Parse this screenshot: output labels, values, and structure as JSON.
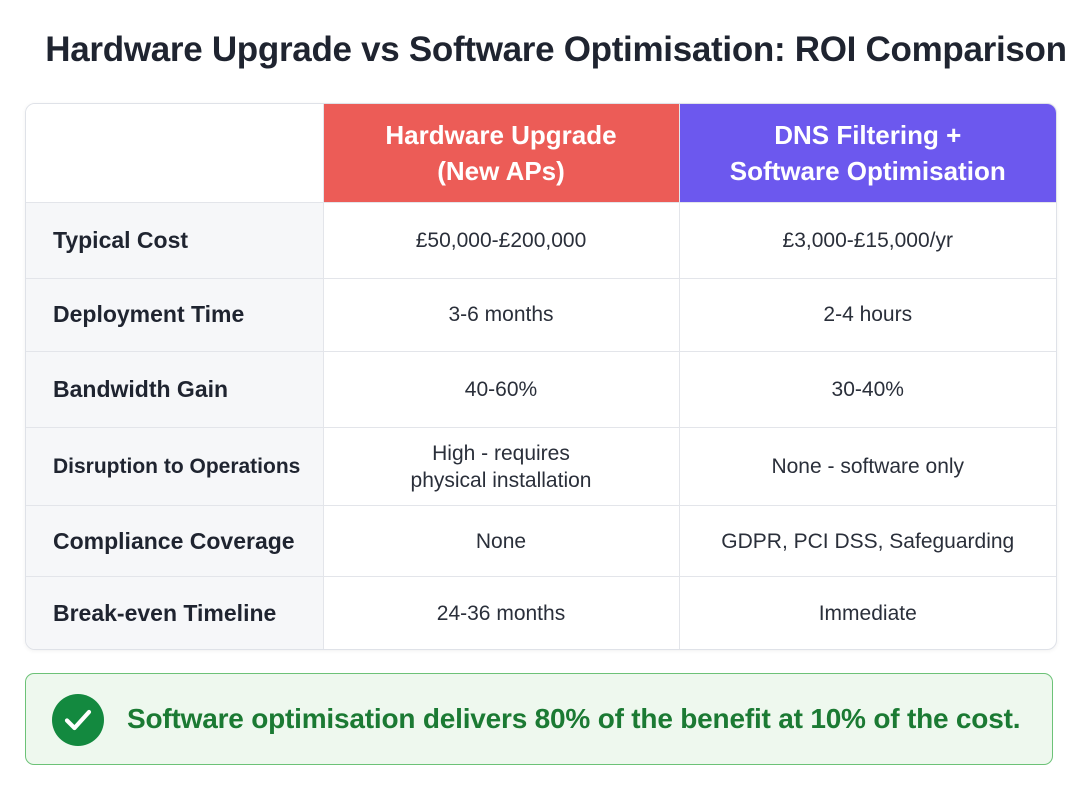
{
  "title": "Hardware Upgrade vs Software Optimisation: ROI Comparison",
  "colors": {
    "hardware_header": "#ec5c57",
    "software_header": "#6c58ee",
    "callout_text": "#1b7a33",
    "callout_bg": "#eef8ee",
    "check_circle": "#13893f"
  },
  "table": {
    "columns": {
      "hardware": {
        "line1": "Hardware Upgrade",
        "line2": "(New APs)"
      },
      "software": {
        "line1": "DNS Filtering +",
        "line2": "Software Optimisation"
      }
    },
    "rows": [
      {
        "label": "Typical Cost",
        "hardware": [
          "£50,000-£200,000"
        ],
        "software": [
          "£3,000-£15,000/yr"
        ]
      },
      {
        "label": "Deployment Time",
        "hardware": [
          "3-6 months"
        ],
        "software": [
          "2-4 hours"
        ]
      },
      {
        "label": "Bandwidth Gain",
        "hardware": [
          "40-60%"
        ],
        "software": [
          "30-40%"
        ]
      },
      {
        "label": "Disruption to Operations",
        "hardware": [
          "High - requires",
          "physical installation"
        ],
        "software": [
          "None - software only"
        ]
      },
      {
        "label": "Compliance Coverage",
        "hardware": [
          "None"
        ],
        "software": [
          "GDPR, PCI DSS, Safeguarding"
        ]
      },
      {
        "label": "Break-even Timeline",
        "hardware": [
          "24-36 months"
        ],
        "software": [
          "Immediate"
        ]
      }
    ]
  },
  "callout": {
    "icon": "check-circle-icon",
    "text": "Software optimisation delivers 80% of the benefit at 10% of the cost."
  }
}
